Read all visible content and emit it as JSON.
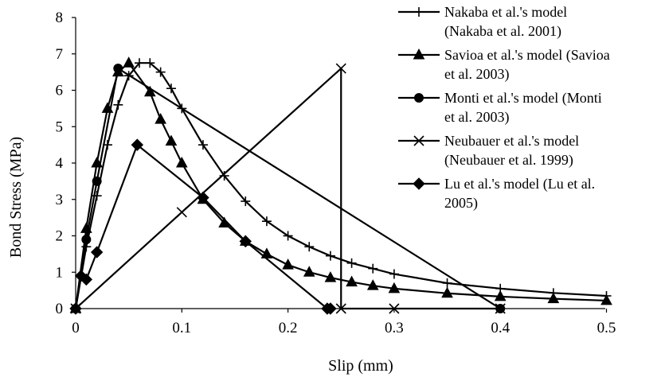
{
  "chart_data": {
    "type": "line",
    "title": "",
    "xlabel": "Slip (mm)",
    "ylabel": "Bond Stress (MPa)",
    "xlim": [
      0,
      0.5
    ],
    "ylim": [
      0,
      8
    ],
    "x_ticks": [
      "0",
      "0.1",
      "0.2",
      "0.3",
      "0.4",
      "0.5"
    ],
    "y_ticks": [
      "0",
      "1",
      "2",
      "3",
      "4",
      "5",
      "6",
      "7",
      "8"
    ],
    "grid": false,
    "legend_position": "right",
    "series": [
      {
        "name": "Nakaba et al.'s model (Nakaba et al. 2001)",
        "legend_lines": [
          "Nakaba et al.'s model",
          "(Nakaba et al. 2001)"
        ],
        "marker": "plus",
        "points": [
          [
            0,
            0
          ],
          [
            0.01,
            1.7
          ],
          [
            0.02,
            3.1
          ],
          [
            0.03,
            4.5
          ],
          [
            0.04,
            5.6
          ],
          [
            0.05,
            6.4
          ],
          [
            0.06,
            6.75
          ],
          [
            0.07,
            6.75
          ],
          [
            0.08,
            6.5
          ],
          [
            0.09,
            6.05
          ],
          [
            0.1,
            5.5
          ],
          [
            0.12,
            4.5
          ],
          [
            0.14,
            3.65
          ],
          [
            0.16,
            2.95
          ],
          [
            0.18,
            2.4
          ],
          [
            0.2,
            2.0
          ],
          [
            0.22,
            1.7
          ],
          [
            0.24,
            1.45
          ],
          [
            0.26,
            1.25
          ],
          [
            0.28,
            1.1
          ],
          [
            0.3,
            0.95
          ],
          [
            0.35,
            0.7
          ],
          [
            0.4,
            0.55
          ],
          [
            0.45,
            0.43
          ],
          [
            0.5,
            0.35
          ]
        ]
      },
      {
        "name": "Savioa et al.'s model (Savioa et al. 2003)",
        "legend_lines": [
          "Savioa et al.'s model (Savioa",
          "et al. 2003)"
        ],
        "marker": "triangle",
        "points": [
          [
            0,
            0
          ],
          [
            0.01,
            2.2
          ],
          [
            0.02,
            4.0
          ],
          [
            0.03,
            5.5
          ],
          [
            0.04,
            6.5
          ],
          [
            0.05,
            6.75
          ],
          [
            0.07,
            5.95
          ],
          [
            0.08,
            5.2
          ],
          [
            0.09,
            4.6
          ],
          [
            0.1,
            4.0
          ],
          [
            0.12,
            3.0
          ],
          [
            0.14,
            2.35
          ],
          [
            0.16,
            1.85
          ],
          [
            0.18,
            1.5
          ],
          [
            0.2,
            1.2
          ],
          [
            0.22,
            1.0
          ],
          [
            0.24,
            0.85
          ],
          [
            0.26,
            0.73
          ],
          [
            0.28,
            0.63
          ],
          [
            0.3,
            0.55
          ],
          [
            0.35,
            0.42
          ],
          [
            0.4,
            0.33
          ],
          [
            0.45,
            0.27
          ],
          [
            0.5,
            0.22
          ]
        ]
      },
      {
        "name": "Monti et al.'s model (Monti et al. 2003)",
        "legend_lines": [
          "Monti et al.'s model (Monti",
          "et al. 2003)"
        ],
        "marker": "circle",
        "points": [
          [
            0,
            0
          ],
          [
            0.01,
            1.9
          ],
          [
            0.02,
            3.5
          ],
          [
            0.04,
            6.6
          ],
          [
            0.4,
            0
          ]
        ]
      },
      {
        "name": "Neubauer et al.'s model (Neubauer et al. 1999)",
        "legend_lines": [
          "Neubauer et al.'s model",
          "(Neubauer et al. 1999)"
        ],
        "marker": "x",
        "points": [
          [
            0,
            0
          ],
          [
            0.1,
            2.65
          ],
          [
            0.25,
            6.6
          ],
          [
            0.25,
            0
          ],
          [
            0.3,
            0
          ],
          [
            0.4,
            0
          ]
        ]
      },
      {
        "name": "Lu et al.'s model (Lu et al. 2005)",
        "legend_lines": [
          "Lu et al.'s model (Lu et al.",
          "2005)"
        ],
        "marker": "diamond",
        "points": [
          [
            0,
            0
          ],
          [
            0.005,
            0.9
          ],
          [
            0.01,
            0.8
          ],
          [
            0.02,
            1.55
          ],
          [
            0.058,
            4.5
          ],
          [
            0.12,
            3.05
          ],
          [
            0.16,
            1.85
          ],
          [
            0.237,
            0
          ],
          [
            0.24,
            0
          ]
        ]
      }
    ]
  }
}
